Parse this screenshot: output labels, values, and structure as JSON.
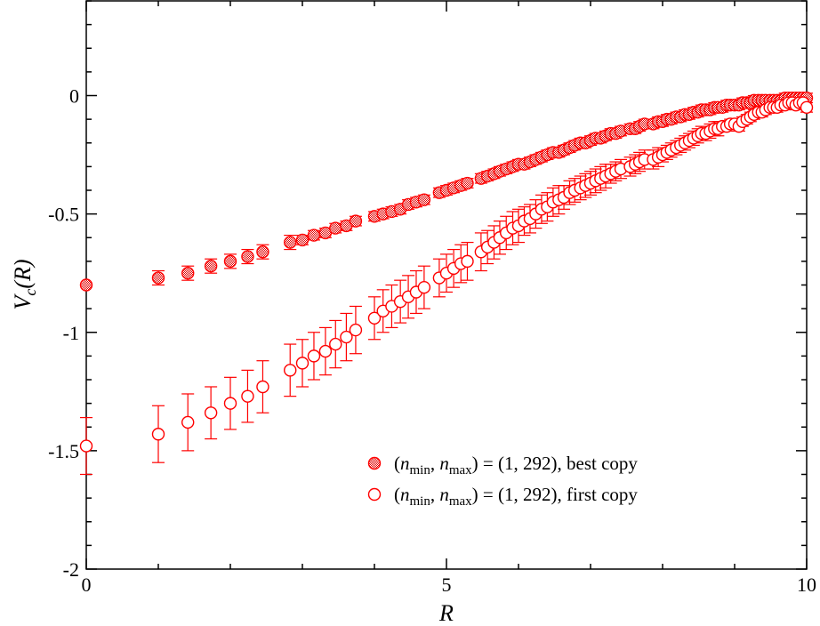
{
  "chart_data": {
    "type": "scatter",
    "title": "",
    "xlabel": "R",
    "ylabel_main": "V",
    "ylabel_sub": "c",
    "ylabel_arg": "(R)",
    "xlim": [
      0,
      10
    ],
    "ylim": [
      -2,
      0.4
    ],
    "x_ticks": [
      0,
      5,
      10
    ],
    "y_ticks": [
      -2,
      -1.5,
      -1,
      -0.5,
      0
    ],
    "x_tick_labels": [
      "0",
      "5",
      "10"
    ],
    "y_tick_labels": [
      "-2",
      "-1.5",
      "-1",
      "-0.5",
      "0"
    ],
    "grid": false,
    "legend_position": "bottom-right",
    "color": "#ff0000",
    "series": [
      {
        "name": "(n_min, n_max) = (1, 292), best copy",
        "label_parts": [
          "(",
          "n",
          "min",
          ", ",
          "n",
          "max",
          ") = (1, 292), best copy"
        ],
        "marker": "filled-circle",
        "points": [
          [
            0.0,
            -0.8,
            0.0
          ],
          [
            1.0,
            -0.77,
            0.03
          ],
          [
            1.41,
            -0.75,
            0.03
          ],
          [
            1.73,
            -0.72,
            0.03
          ],
          [
            2.0,
            -0.7,
            0.03
          ],
          [
            2.24,
            -0.68,
            0.03
          ],
          [
            2.45,
            -0.66,
            0.03
          ],
          [
            2.83,
            -0.62,
            0.03
          ],
          [
            3.0,
            -0.61,
            0.02
          ],
          [
            3.16,
            -0.59,
            0.02
          ],
          [
            3.32,
            -0.58,
            0.02
          ],
          [
            3.46,
            -0.56,
            0.02
          ],
          [
            3.61,
            -0.55,
            0.02
          ],
          [
            3.74,
            -0.53,
            0.02
          ],
          [
            4.0,
            -0.51,
            0.02
          ],
          [
            4.12,
            -0.5,
            0.02
          ],
          [
            4.24,
            -0.49,
            0.02
          ],
          [
            4.36,
            -0.48,
            0.02
          ],
          [
            4.47,
            -0.46,
            0.02
          ],
          [
            4.58,
            -0.45,
            0.02
          ],
          [
            4.69,
            -0.44,
            0.02
          ],
          [
            4.9,
            -0.41,
            0.02
          ],
          [
            5.0,
            -0.4,
            0.02
          ],
          [
            5.1,
            -0.39,
            0.02
          ],
          [
            5.2,
            -0.38,
            0.02
          ],
          [
            5.29,
            -0.37,
            0.02
          ],
          [
            5.48,
            -0.35,
            0.02
          ],
          [
            5.57,
            -0.34,
            0.02
          ],
          [
            5.66,
            -0.33,
            0.02
          ],
          [
            5.74,
            -0.32,
            0.02
          ],
          [
            5.83,
            -0.31,
            0.02
          ],
          [
            5.92,
            -0.3,
            0.02
          ],
          [
            6.0,
            -0.29,
            0.02
          ],
          [
            6.08,
            -0.29,
            0.02
          ],
          [
            6.16,
            -0.28,
            0.02
          ],
          [
            6.24,
            -0.27,
            0.02
          ],
          [
            6.32,
            -0.26,
            0.02
          ],
          [
            6.4,
            -0.25,
            0.02
          ],
          [
            6.48,
            -0.24,
            0.02
          ],
          [
            6.56,
            -0.24,
            0.02
          ],
          [
            6.63,
            -0.23,
            0.02
          ],
          [
            6.71,
            -0.22,
            0.02
          ],
          [
            6.78,
            -0.21,
            0.02
          ],
          [
            6.86,
            -0.2,
            0.02
          ],
          [
            6.93,
            -0.2,
            0.02
          ],
          [
            7.0,
            -0.19,
            0.02
          ],
          [
            7.07,
            -0.18,
            0.02
          ],
          [
            7.14,
            -0.18,
            0.02
          ],
          [
            7.21,
            -0.17,
            0.02
          ],
          [
            7.28,
            -0.16,
            0.02
          ],
          [
            7.35,
            -0.16,
            0.02
          ],
          [
            7.42,
            -0.15,
            0.02
          ],
          [
            7.55,
            -0.14,
            0.02
          ],
          [
            7.62,
            -0.14,
            0.02
          ],
          [
            7.68,
            -0.13,
            0.02
          ],
          [
            7.75,
            -0.12,
            0.02
          ],
          [
            7.87,
            -0.12,
            0.02
          ],
          [
            7.94,
            -0.11,
            0.02
          ],
          [
            8.0,
            -0.11,
            0.02
          ],
          [
            8.06,
            -0.1,
            0.02
          ],
          [
            8.12,
            -0.1,
            0.02
          ],
          [
            8.19,
            -0.09,
            0.02
          ],
          [
            8.25,
            -0.09,
            0.02
          ],
          [
            8.31,
            -0.08,
            0.02
          ],
          [
            8.37,
            -0.08,
            0.02
          ],
          [
            8.43,
            -0.07,
            0.02
          ],
          [
            8.49,
            -0.07,
            0.02
          ],
          [
            8.54,
            -0.06,
            0.02
          ],
          [
            8.6,
            -0.06,
            0.02
          ],
          [
            8.66,
            -0.06,
            0.02
          ],
          [
            8.72,
            -0.05,
            0.02
          ],
          [
            8.77,
            -0.05,
            0.02
          ],
          [
            8.83,
            -0.05,
            0.02
          ],
          [
            8.89,
            -0.04,
            0.02
          ],
          [
            8.94,
            -0.04,
            0.02
          ],
          [
            9.0,
            -0.04,
            0.02
          ],
          [
            9.06,
            -0.04,
            0.02
          ],
          [
            9.11,
            -0.03,
            0.02
          ],
          [
            9.17,
            -0.03,
            0.02
          ],
          [
            9.22,
            -0.03,
            0.02
          ],
          [
            9.27,
            -0.02,
            0.02
          ],
          [
            9.33,
            -0.02,
            0.02
          ],
          [
            9.38,
            -0.02,
            0.02
          ],
          [
            9.43,
            -0.02,
            0.02
          ],
          [
            9.49,
            -0.02,
            0.02
          ],
          [
            9.54,
            -0.02,
            0.02
          ],
          [
            9.59,
            -0.02,
            0.02
          ],
          [
            9.64,
            -0.02,
            0.02
          ],
          [
            9.7,
            -0.01,
            0.02
          ],
          [
            9.75,
            -0.01,
            0.02
          ],
          [
            9.8,
            -0.01,
            0.02
          ],
          [
            9.85,
            -0.01,
            0.02
          ],
          [
            9.9,
            -0.01,
            0.02
          ],
          [
            9.95,
            -0.01,
            0.02
          ],
          [
            10.0,
            -0.01,
            0.02
          ]
        ]
      },
      {
        "name": "(n_min, n_max) = (1, 292), first copy",
        "label_parts": [
          "(",
          "n",
          "min",
          ", ",
          "n",
          "max",
          ") = (1, 292), first copy"
        ],
        "marker": "open-circle",
        "points": [
          [
            0.0,
            -1.48,
            0.12
          ],
          [
            1.0,
            -1.43,
            0.12
          ],
          [
            1.41,
            -1.38,
            0.12
          ],
          [
            1.73,
            -1.34,
            0.11
          ],
          [
            2.0,
            -1.3,
            0.11
          ],
          [
            2.24,
            -1.27,
            0.11
          ],
          [
            2.45,
            -1.23,
            0.11
          ],
          [
            2.83,
            -1.16,
            0.11
          ],
          [
            3.0,
            -1.13,
            0.1
          ],
          [
            3.16,
            -1.1,
            0.1
          ],
          [
            3.32,
            -1.08,
            0.1
          ],
          [
            3.46,
            -1.05,
            0.1
          ],
          [
            3.61,
            -1.02,
            0.1
          ],
          [
            3.74,
            -0.99,
            0.1
          ],
          [
            4.0,
            -0.94,
            0.09
          ],
          [
            4.12,
            -0.91,
            0.09
          ],
          [
            4.24,
            -0.89,
            0.09
          ],
          [
            4.36,
            -0.87,
            0.09
          ],
          [
            4.47,
            -0.85,
            0.09
          ],
          [
            4.58,
            -0.83,
            0.09
          ],
          [
            4.69,
            -0.81,
            0.09
          ],
          [
            4.9,
            -0.77,
            0.08
          ],
          [
            5.0,
            -0.75,
            0.08
          ],
          [
            5.1,
            -0.73,
            0.08
          ],
          [
            5.2,
            -0.71,
            0.08
          ],
          [
            5.29,
            -0.7,
            0.08
          ],
          [
            5.48,
            -0.66,
            0.08
          ],
          [
            5.57,
            -0.64,
            0.07
          ],
          [
            5.66,
            -0.62,
            0.07
          ],
          [
            5.74,
            -0.6,
            0.07
          ],
          [
            5.83,
            -0.58,
            0.07
          ],
          [
            5.92,
            -0.56,
            0.07
          ],
          [
            6.0,
            -0.55,
            0.07
          ],
          [
            6.08,
            -0.53,
            0.06
          ],
          [
            6.16,
            -0.52,
            0.06
          ],
          [
            6.24,
            -0.5,
            0.06
          ],
          [
            6.32,
            -0.48,
            0.06
          ],
          [
            6.4,
            -0.47,
            0.06
          ],
          [
            6.48,
            -0.45,
            0.06
          ],
          [
            6.56,
            -0.44,
            0.06
          ],
          [
            6.63,
            -0.43,
            0.05
          ],
          [
            6.71,
            -0.41,
            0.05
          ],
          [
            6.78,
            -0.4,
            0.05
          ],
          [
            6.86,
            -0.39,
            0.05
          ],
          [
            6.93,
            -0.38,
            0.05
          ],
          [
            7.0,
            -0.37,
            0.05
          ],
          [
            7.07,
            -0.36,
            0.05
          ],
          [
            7.14,
            -0.35,
            0.05
          ],
          [
            7.21,
            -0.34,
            0.05
          ],
          [
            7.28,
            -0.33,
            0.04
          ],
          [
            7.35,
            -0.32,
            0.04
          ],
          [
            7.42,
            -0.31,
            0.04
          ],
          [
            7.55,
            -0.3,
            0.04
          ],
          [
            7.62,
            -0.29,
            0.04
          ],
          [
            7.68,
            -0.28,
            0.04
          ],
          [
            7.75,
            -0.27,
            0.04
          ],
          [
            7.87,
            -0.27,
            0.04
          ],
          [
            7.94,
            -0.26,
            0.04
          ],
          [
            8.0,
            -0.25,
            0.03
          ],
          [
            8.06,
            -0.24,
            0.03
          ],
          [
            8.12,
            -0.23,
            0.03
          ],
          [
            8.19,
            -0.22,
            0.03
          ],
          [
            8.25,
            -0.21,
            0.03
          ],
          [
            8.31,
            -0.2,
            0.03
          ],
          [
            8.37,
            -0.19,
            0.03
          ],
          [
            8.43,
            -0.18,
            0.03
          ],
          [
            8.49,
            -0.17,
            0.03
          ],
          [
            8.54,
            -0.16,
            0.03
          ],
          [
            8.6,
            -0.16,
            0.03
          ],
          [
            8.66,
            -0.15,
            0.03
          ],
          [
            8.72,
            -0.14,
            0.03
          ],
          [
            8.77,
            -0.14,
            0.03
          ],
          [
            8.83,
            -0.13,
            0.02
          ],
          [
            8.89,
            -0.13,
            0.02
          ],
          [
            8.94,
            -0.12,
            0.02
          ],
          [
            9.0,
            -0.12,
            0.02
          ],
          [
            9.06,
            -0.13,
            0.02
          ],
          [
            9.11,
            -0.11,
            0.02
          ],
          [
            9.17,
            -0.1,
            0.02
          ],
          [
            9.22,
            -0.09,
            0.02
          ],
          [
            9.27,
            -0.08,
            0.02
          ],
          [
            9.33,
            -0.07,
            0.02
          ],
          [
            9.38,
            -0.07,
            0.02
          ],
          [
            9.43,
            -0.06,
            0.02
          ],
          [
            9.49,
            -0.05,
            0.02
          ],
          [
            9.54,
            -0.05,
            0.02
          ],
          [
            9.59,
            -0.05,
            0.02
          ],
          [
            9.64,
            -0.04,
            0.02
          ],
          [
            9.7,
            -0.04,
            0.02
          ],
          [
            9.75,
            -0.03,
            0.02
          ],
          [
            9.8,
            -0.03,
            0.02
          ],
          [
            9.85,
            -0.04,
            0.02
          ],
          [
            9.9,
            -0.03,
            0.02
          ],
          [
            9.95,
            -0.03,
            0.02
          ],
          [
            10.0,
            -0.05,
            0.02
          ]
        ]
      }
    ]
  }
}
